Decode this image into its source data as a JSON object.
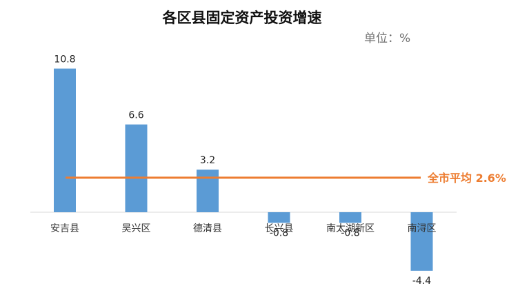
{
  "chart_data": {
    "type": "bar",
    "title": "各区县固定资产投资增速",
    "unit_label": "单位：%",
    "categories": [
      "安吉县",
      "吴兴区",
      "德清县",
      "长兴县",
      "南太湖新区",
      "南浔区"
    ],
    "values": [
      10.8,
      6.6,
      3.2,
      -0.8,
      -0.8,
      -4.4
    ],
    "value_labels": [
      "10.8",
      "6.6",
      "3.2",
      "-0.8",
      "-0.8",
      "-4.4"
    ],
    "reference_line": {
      "label": "全市平均 2.6%",
      "value": 2.6
    },
    "ylim": [
      -4.4,
      10.8
    ],
    "grid": false,
    "colors": {
      "bar": "#5b9bd5",
      "reference_line": "#ed7d31",
      "axis": "#d9d9d9"
    }
  }
}
